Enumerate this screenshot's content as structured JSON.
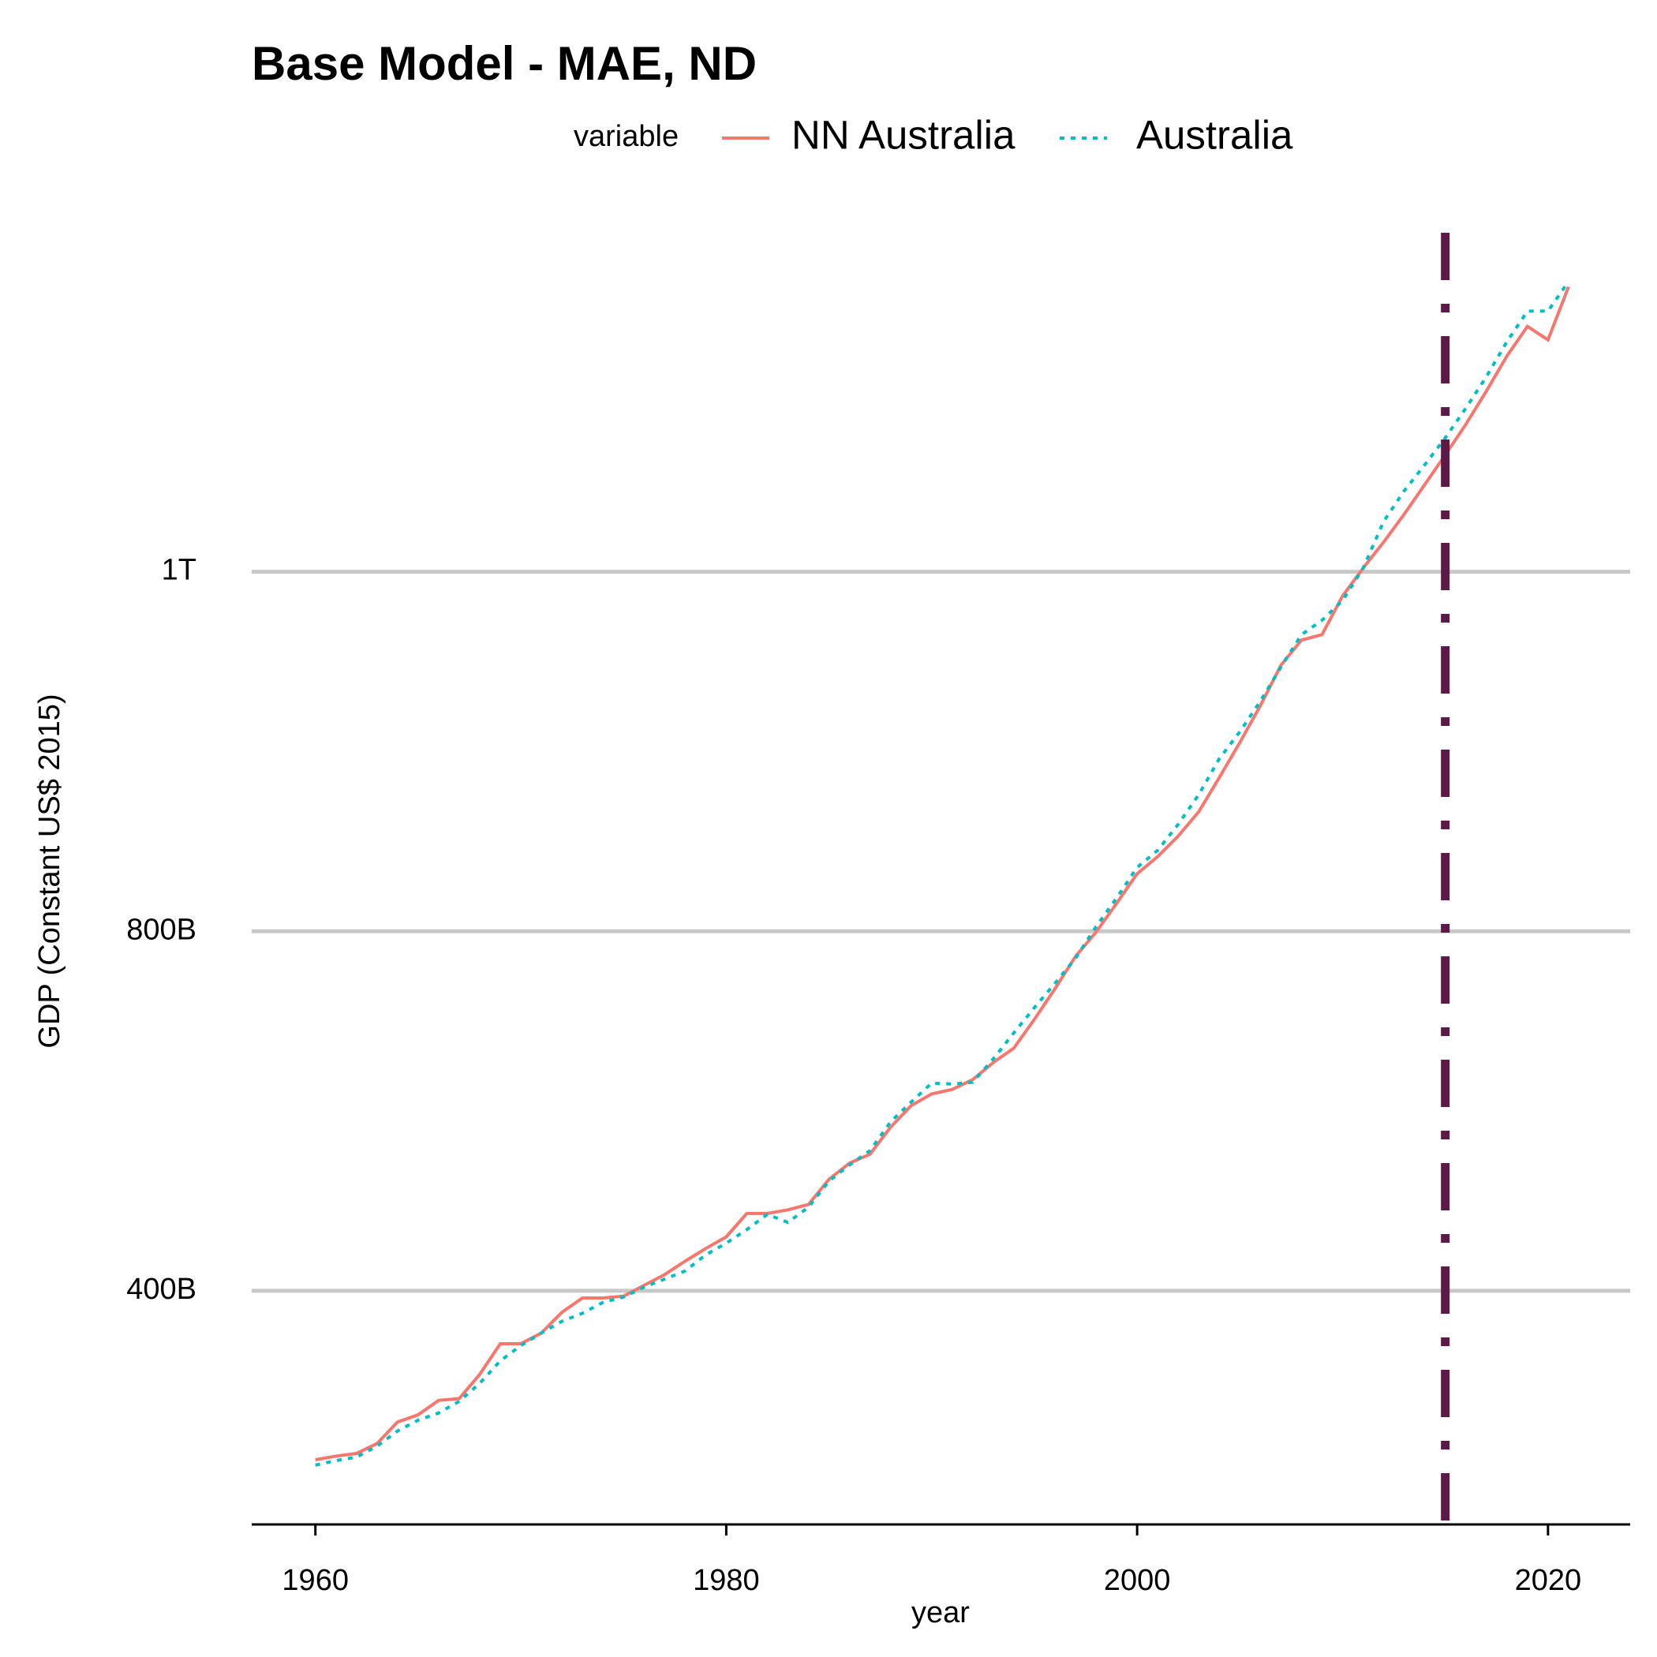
{
  "chart_data": {
    "type": "line",
    "title": "Base Model - MAE, ND",
    "x_label": "year",
    "y_label": "GDP (Constant US$ 2015)",
    "legend_title": "variable",
    "legend": "top",
    "x": [
      1960,
      1961,
      1962,
      1963,
      1964,
      1965,
      1966,
      1967,
      1968,
      1969,
      1970,
      1971,
      1972,
      1973,
      1974,
      1975,
      1976,
      1977,
      1978,
      1979,
      1980,
      1981,
      1982,
      1983,
      1984,
      1985,
      1986,
      1987,
      1988,
      1989,
      1990,
      1991,
      1992,
      1993,
      1994,
      1995,
      1996,
      1997,
      1998,
      1999,
      2000,
      2001,
      2002,
      2003,
      2004,
      2005,
      2006,
      2007,
      2008,
      2009,
      2010,
      2011,
      2012,
      2013,
      2014,
      2015,
      2016,
      2017,
      2018,
      2019,
      2020,
      2021
    ],
    "series": [
      {
        "name": "NN Australia",
        "color": "#f8766d",
        "dash": "solid",
        "values": [
          212,
          216,
          219,
          230,
          254,
          262,
          278,
          280,
          307,
          341,
          341,
          353,
          376,
          392,
          392,
          394,
          406,
          418,
          433,
          447,
          460,
          486,
          486,
          490,
          496,
          524,
          542,
          552,
          582,
          606,
          619,
          624,
          635,
          654,
          670,
          702,
          736,
          772,
          799,
          831,
          864,
          883,
          906,
          933,
          971,
          1010,
          1051,
          1096,
          1124,
          1130,
          1173,
          1204,
          1233,
          1264,
          1297,
          1330,
          1364,
          1401,
          1440,
          1473,
          1458,
          1517
        ]
      },
      {
        "name": "Australia",
        "color": "#00bfc4",
        "dash": "dotted",
        "values": [
          206,
          211,
          215,
          227,
          244,
          256,
          264,
          277,
          297,
          322,
          339,
          353,
          366,
          375,
          387,
          393,
          404,
          413,
          422,
          440,
          453,
          468,
          485,
          476,
          493,
          522,
          540,
          556,
          588,
          610,
          631,
          630,
          632,
          658,
          687,
          715,
          742,
          770,
          805,
          837,
          871,
          890,
          919,
          952,
          992,
          1022,
          1056,
          1094,
          1130,
          1146,
          1168,
          1204,
          1256,
          1290,
          1319,
          1349,
          1382,
          1417,
          1456,
          1490,
          1490,
          1523
        ]
      }
    ],
    "vline": 2015,
    "vline_color": "#5c1a48",
    "xlim": [
      1956.9,
      2024
    ],
    "xticks": [
      1960,
      1980,
      2000,
      2020
    ],
    "ylim": [
      140,
      1600
    ],
    "yticks": [
      {
        "value": 400,
        "label": "400B"
      },
      {
        "value": 800,
        "label": "800B"
      },
      {
        "value": 1200,
        "label": "1T"
      }
    ],
    "grid": true
  }
}
